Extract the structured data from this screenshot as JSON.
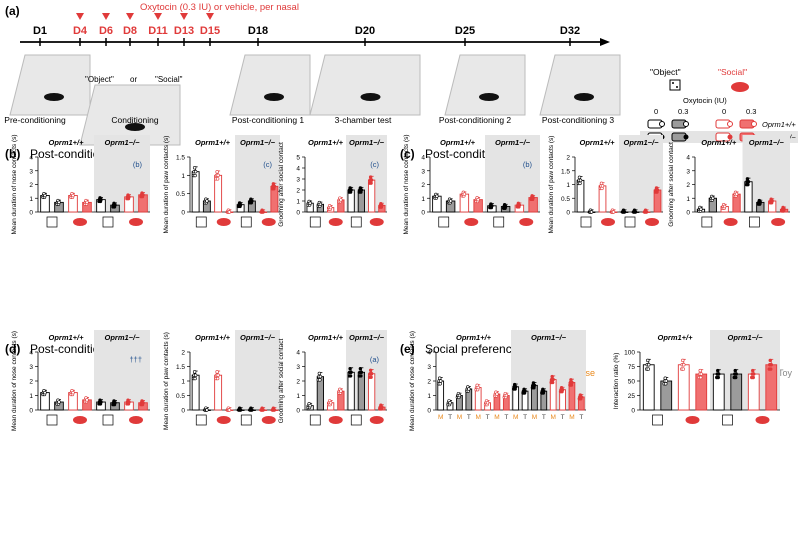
{
  "panel_a": {
    "label": "(a)",
    "treatment": "Oxytocin (0.3 IU) or vehicle, per nasal",
    "days": [
      "D1",
      "D4",
      "D6",
      "D8",
      "D11",
      "D13",
      "D15",
      "D18",
      "D20",
      "D25",
      "D32"
    ],
    "phases": [
      "Pre-conditioning",
      "Conditioning",
      "Post-conditioning 1",
      "3-chamber test",
      "Post-conditioning 2",
      "Post-conditioning 3"
    ],
    "conditioning_labels": {
      "object": "\"Object\"",
      "or": "or",
      "social": "\"Social\""
    },
    "legend": {
      "object_title": "\"Object\"",
      "social_title": "\"Social\"",
      "oxytocin_label": "Oxytocin (IU)",
      "doses": [
        "0",
        "0.3",
        "0",
        "0.3"
      ],
      "genotype_wt": "Oprm1+/+",
      "genotype_ko": "Oprm1−/−"
    }
  },
  "panel_titles": {
    "b": {
      "label": "(b)",
      "title": "Post-conditioning 1"
    },
    "c": {
      "label": "(c)",
      "title": "Post-conditioning 2"
    },
    "d": {
      "label": "(d)",
      "title": "Post-conditioning 3"
    },
    "e": {
      "label": "(e)",
      "title": "Social preference"
    }
  },
  "panel_e_labels": {
    "mouse": "Mouse",
    "toy": "Toy",
    "mt": [
      "M",
      "T",
      "M",
      "T",
      "M",
      "T",
      "M",
      "T",
      "M",
      "T",
      "M",
      "T",
      "M",
      "T",
      "M",
      "T"
    ]
  },
  "genotypes": {
    "wt": "Oprm1+/+",
    "ko": "Oprm1−/−"
  },
  "ylabels": {
    "nose": "Mean duration of nose contacts (s)",
    "paw": "Mean duration of paw contacts (s)",
    "groom": "Grooming after social contact",
    "ratio": "Interaction ratio (%)"
  },
  "colors": {
    "grey": "#9b9b9b",
    "red": "#e03a3a",
    "pink": "#f07070",
    "black": "#000000",
    "star": "#1f4e8c",
    "green": "#4caf50",
    "orange": "#e98a1e",
    "shade": "#e4e4e4"
  },
  "chart_data": [
    {
      "panel": "b",
      "type": "bar",
      "ylabel": "Mean duration of nose contacts (s)",
      "ylim": [
        0,
        4
      ],
      "yticks": [
        0,
        1,
        2,
        3,
        4
      ],
      "series": [
        {
          "values": [
            1.2,
            0.7,
            1.2,
            0.7,
            0.9,
            0.5,
            1.1,
            1.25
          ]
        }
      ],
      "annotation": "(b)"
    },
    {
      "panel": "b",
      "type": "bar",
      "ylabel": "Mean duration of paw contacts (s)",
      "ylim": [
        0,
        1.5
      ],
      "yticks": [
        0,
        0.5,
        1,
        1.5
      ],
      "series": [
        {
          "values": [
            1.1,
            0.3,
            1.0,
            0.0,
            0.2,
            0.3,
            0.0,
            0.7
          ]
        }
      ],
      "annotation": "(c)"
    },
    {
      "panel": "b",
      "type": "bar",
      "ylabel": "Grooming after social contact",
      "ylim": [
        0,
        5
      ],
      "yticks": [
        0,
        1,
        2,
        3,
        4,
        5
      ],
      "series": [
        {
          "values": [
            0.8,
            0.7,
            0.4,
            1.1,
            2.0,
            2.0,
            2.9,
            0.6
          ]
        }
      ],
      "annotation": "(c)"
    },
    {
      "panel": "c",
      "type": "bar",
      "ylabel": "Mean duration of nose contacts (s)",
      "ylim": [
        0,
        4
      ],
      "yticks": [
        0,
        1,
        2,
        3,
        4
      ],
      "series": [
        {
          "values": [
            1.15,
            0.8,
            1.3,
            0.9,
            0.45,
            0.4,
            0.5,
            1.05
          ]
        }
      ],
      "annotation": "(b)"
    },
    {
      "panel": "c",
      "type": "bar",
      "ylabel": "Mean duration of paw contacts (s)",
      "ylim": [
        0,
        2
      ],
      "yticks": [
        0,
        0.5,
        1,
        1.5,
        2
      ],
      "series": [
        {
          "values": [
            1.15,
            0.0,
            0.95,
            0.0,
            0.0,
            0.0,
            0.0,
            0.8
          ]
        }
      ]
    },
    {
      "panel": "c",
      "type": "bar",
      "ylabel": "Grooming after social contact",
      "ylim": [
        0,
        4
      ],
      "yticks": [
        0,
        1,
        2,
        3,
        4
      ],
      "series": [
        {
          "values": [
            0.2,
            1.0,
            0.4,
            1.3,
            2.2,
            0.7,
            0.8,
            0.2
          ]
        }
      ]
    },
    {
      "panel": "d",
      "type": "bar",
      "ylabel": "Mean duration of nose contacts (s)",
      "ylim": [
        0,
        4
      ],
      "yticks": [
        0,
        1,
        2,
        3,
        4
      ],
      "series": [
        {
          "values": [
            1.2,
            0.55,
            1.2,
            0.7,
            0.55,
            0.5,
            0.55,
            0.5
          ]
        }
      ],
      "annotation": "†††"
    },
    {
      "panel": "d",
      "type": "bar",
      "ylabel": "Mean duration of paw contacts (s)",
      "ylim": [
        0,
        2
      ],
      "yticks": [
        0,
        0.5,
        1,
        1.5,
        2
      ],
      "series": [
        {
          "values": [
            1.2,
            0.0,
            1.2,
            0.0,
            0.0,
            0.0,
            0.0,
            0.0
          ]
        }
      ]
    },
    {
      "panel": "d",
      "type": "bar",
      "ylabel": "Grooming after social contact",
      "ylim": [
        0,
        4
      ],
      "yticks": [
        0,
        1,
        2,
        3,
        4
      ],
      "series": [
        {
          "values": [
            0.3,
            2.3,
            0.5,
            1.3,
            2.6,
            2.6,
            2.5,
            0.2
          ]
        }
      ],
      "annotation": "(a)"
    },
    {
      "panel": "e",
      "type": "bar",
      "ylabel": "Mean duration of nose contacts (s)",
      "ylim": [
        0,
        4
      ],
      "yticks": [
        0,
        1,
        2,
        3,
        4
      ],
      "series": [
        {
          "values": [
            2.0,
            0.5,
            1.0,
            1.45,
            1.55,
            0.5,
            1.1,
            1.0,
            1.6,
            1.3,
            1.7,
            1.3,
            2.1,
            1.4,
            1.9,
            0.9
          ]
        }
      ]
    },
    {
      "panel": "e",
      "type": "bar",
      "ylabel": "Interaction ratio (%)",
      "ylim": [
        0,
        100
      ],
      "yticks": [
        0,
        25,
        50,
        75,
        100
      ],
      "series": [
        {
          "values": [
            78,
            50,
            78,
            62,
            62,
            62,
            62,
            78
          ]
        }
      ]
    }
  ]
}
